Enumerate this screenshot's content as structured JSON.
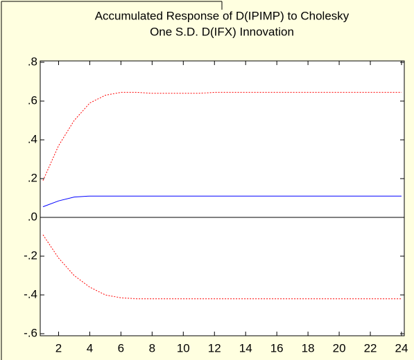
{
  "chart_data": {
    "type": "line",
    "title": "Accumulated Response of D(IPIMP) to Cholesky",
    "subtitle": "One S.D. D(IFX) Innovation",
    "x": [
      1,
      2,
      3,
      4,
      5,
      6,
      7,
      8,
      9,
      10,
      11,
      12,
      13,
      14,
      15,
      16,
      17,
      18,
      19,
      20,
      21,
      22,
      23,
      24
    ],
    "series": [
      {
        "color": "#0000ff",
        "style": "solid",
        "values": [
          0.055,
          0.085,
          0.105,
          0.11,
          0.11,
          0.11,
          0.11,
          0.11,
          0.11,
          0.11,
          0.11,
          0.11,
          0.11,
          0.11,
          0.11,
          0.11,
          0.11,
          0.11,
          0.11,
          0.11,
          0.11,
          0.11,
          0.11,
          0.11
        ]
      },
      {
        "color": "#ff0000",
        "style": "dotted",
        "values": [
          0.19,
          0.37,
          0.5,
          0.59,
          0.63,
          0.645,
          0.645,
          0.64,
          0.64,
          0.64,
          0.64,
          0.645,
          0.645,
          0.645,
          0.645,
          0.645,
          0.645,
          0.645,
          0.645,
          0.645,
          0.645,
          0.645,
          0.645,
          0.645
        ]
      },
      {
        "color": "#ff0000",
        "style": "dotted",
        "values": [
          -0.09,
          -0.21,
          -0.3,
          -0.36,
          -0.4,
          -0.415,
          -0.42,
          -0.42,
          -0.42,
          -0.42,
          -0.42,
          -0.42,
          -0.42,
          -0.42,
          -0.42,
          -0.42,
          -0.42,
          -0.42,
          -0.42,
          -0.42,
          -0.42,
          -0.42,
          -0.42,
          -0.42
        ]
      }
    ],
    "xlim": [
      1,
      24
    ],
    "xticks": [
      2,
      4,
      6,
      8,
      10,
      12,
      14,
      16,
      18,
      20,
      22,
      24
    ],
    "ylim": [
      -0.6,
      0.8
    ],
    "yticks": [
      {
        "value": -0.6,
        "label": "-.6"
      },
      {
        "value": -0.4,
        "label": "-.4"
      },
      {
        "value": -0.2,
        "label": "-.2"
      },
      {
        "value": 0,
        "label": ".0"
      },
      {
        "value": 0.2,
        "label": ".2"
      },
      {
        "value": 0.4,
        "label": ".4"
      },
      {
        "value": 0.6,
        "label": ".6"
      },
      {
        "value": 0.8,
        "label": ".8"
      }
    ],
    "zero_line": true
  }
}
